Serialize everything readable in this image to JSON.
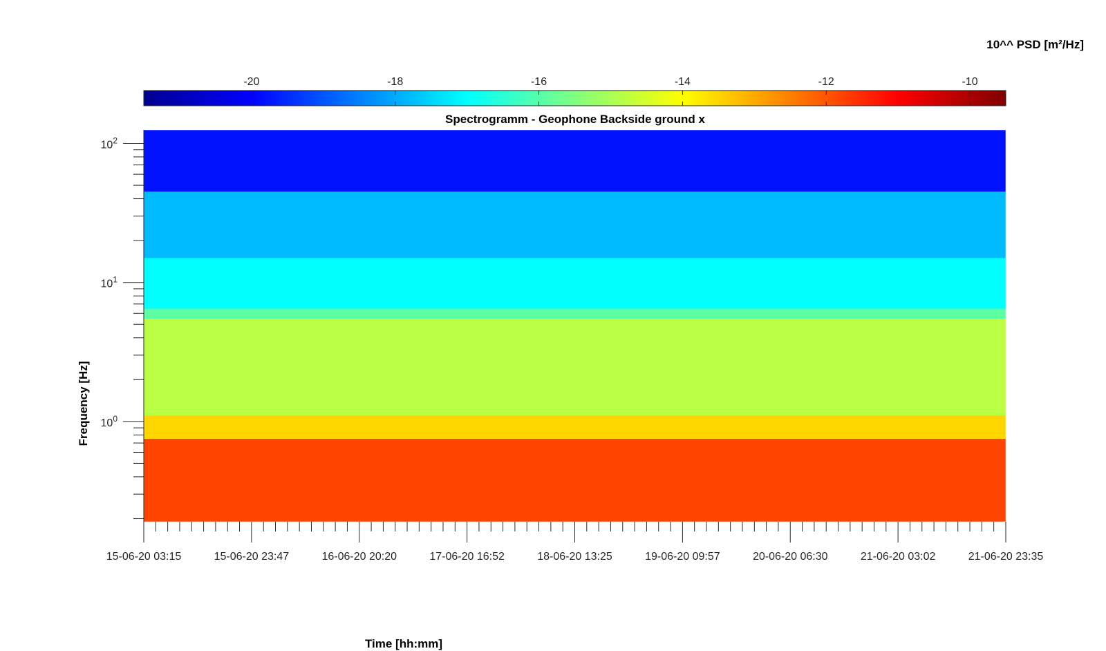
{
  "chart_data": {
    "type": "heatmap",
    "title": "Spectrogramm - Geophone Backside ground x",
    "xlabel": "Time [hh:mm]",
    "ylabel": "Frequency [Hz]",
    "colorbar_label": "10^^ PSD [m²/Hz]",
    "colormap": "jet",
    "color_range": [
      -21.5,
      -9.5
    ],
    "colorbar_ticks": [
      "-20",
      "-18",
      "-16",
      "-14",
      "-12",
      "-10"
    ],
    "colorbar_tick_values": [
      -20,
      -18,
      -16,
      -14,
      -12,
      -10
    ],
    "y_scale": "log",
    "ylim": [
      0.19,
      125
    ],
    "y_ticks": [
      {
        "value": 1,
        "base": "10",
        "exp": "0"
      },
      {
        "value": 10,
        "base": "10",
        "exp": "1"
      },
      {
        "value": 100,
        "base": "10",
        "exp": "2"
      }
    ],
    "x_tick_labels": [
      "15-06-20 03:15",
      "15-06-20 23:47",
      "16-06-20 20:20",
      "17-06-20 16:52",
      "18-06-20 13:25",
      "19-06-20 09:57",
      "20-06-20 06:30",
      "21-06-20 03:02",
      "21-06-20 23:35"
    ],
    "minor_ticks_per_major": 8,
    "bands": [
      {
        "freq_range": [
          0.19,
          0.75
        ],
        "psd": -11.8
      },
      {
        "freq_range": [
          0.75,
          1.1
        ],
        "psd": -13.5
      },
      {
        "freq_range": [
          1.1,
          5.5
        ],
        "psd": -14.8
      },
      {
        "freq_range": [
          5.5,
          6.5
        ],
        "psd": -15.9
      },
      {
        "freq_range": [
          6.5,
          15
        ],
        "psd": -17.0
      },
      {
        "freq_range": [
          15,
          45
        ],
        "psd": -17.8
      },
      {
        "freq_range": [
          45,
          125
        ],
        "psd": -19.8
      }
    ]
  }
}
